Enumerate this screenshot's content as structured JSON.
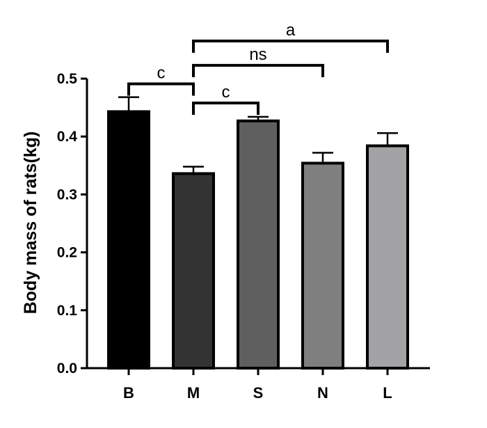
{
  "chart_data": {
    "type": "bar",
    "title": "",
    "xlabel": "",
    "ylabel": "Body mass of rats(kg)",
    "ylim": [
      0,
      0.5
    ],
    "yticks": [
      "0.0",
      "0.1",
      "0.2",
      "0.3",
      "0.4",
      "0.5"
    ],
    "categories": [
      "B",
      "M",
      "S",
      "N",
      "L"
    ],
    "values": [
      0.443,
      0.336,
      0.427,
      0.354,
      0.384
    ],
    "errors": [
      0.025,
      0.012,
      0.007,
      0.018,
      0.022
    ],
    "colors": [
      "#000000",
      "#333333",
      "#5f5f5f",
      "#7f7f7f",
      "#a3a3a5"
    ],
    "grid": false,
    "legend": "none",
    "annotations": [
      {
        "from": "M",
        "to": "B",
        "label": "c",
        "y": 0.491
      },
      {
        "from": "M",
        "to": "S",
        "label": "c",
        "y": 0.458
      },
      {
        "from": "M",
        "to": "N",
        "label": "ns",
        "y": 0.523
      },
      {
        "from": "M",
        "to": "L",
        "label": "a",
        "y": 0.565
      }
    ]
  }
}
